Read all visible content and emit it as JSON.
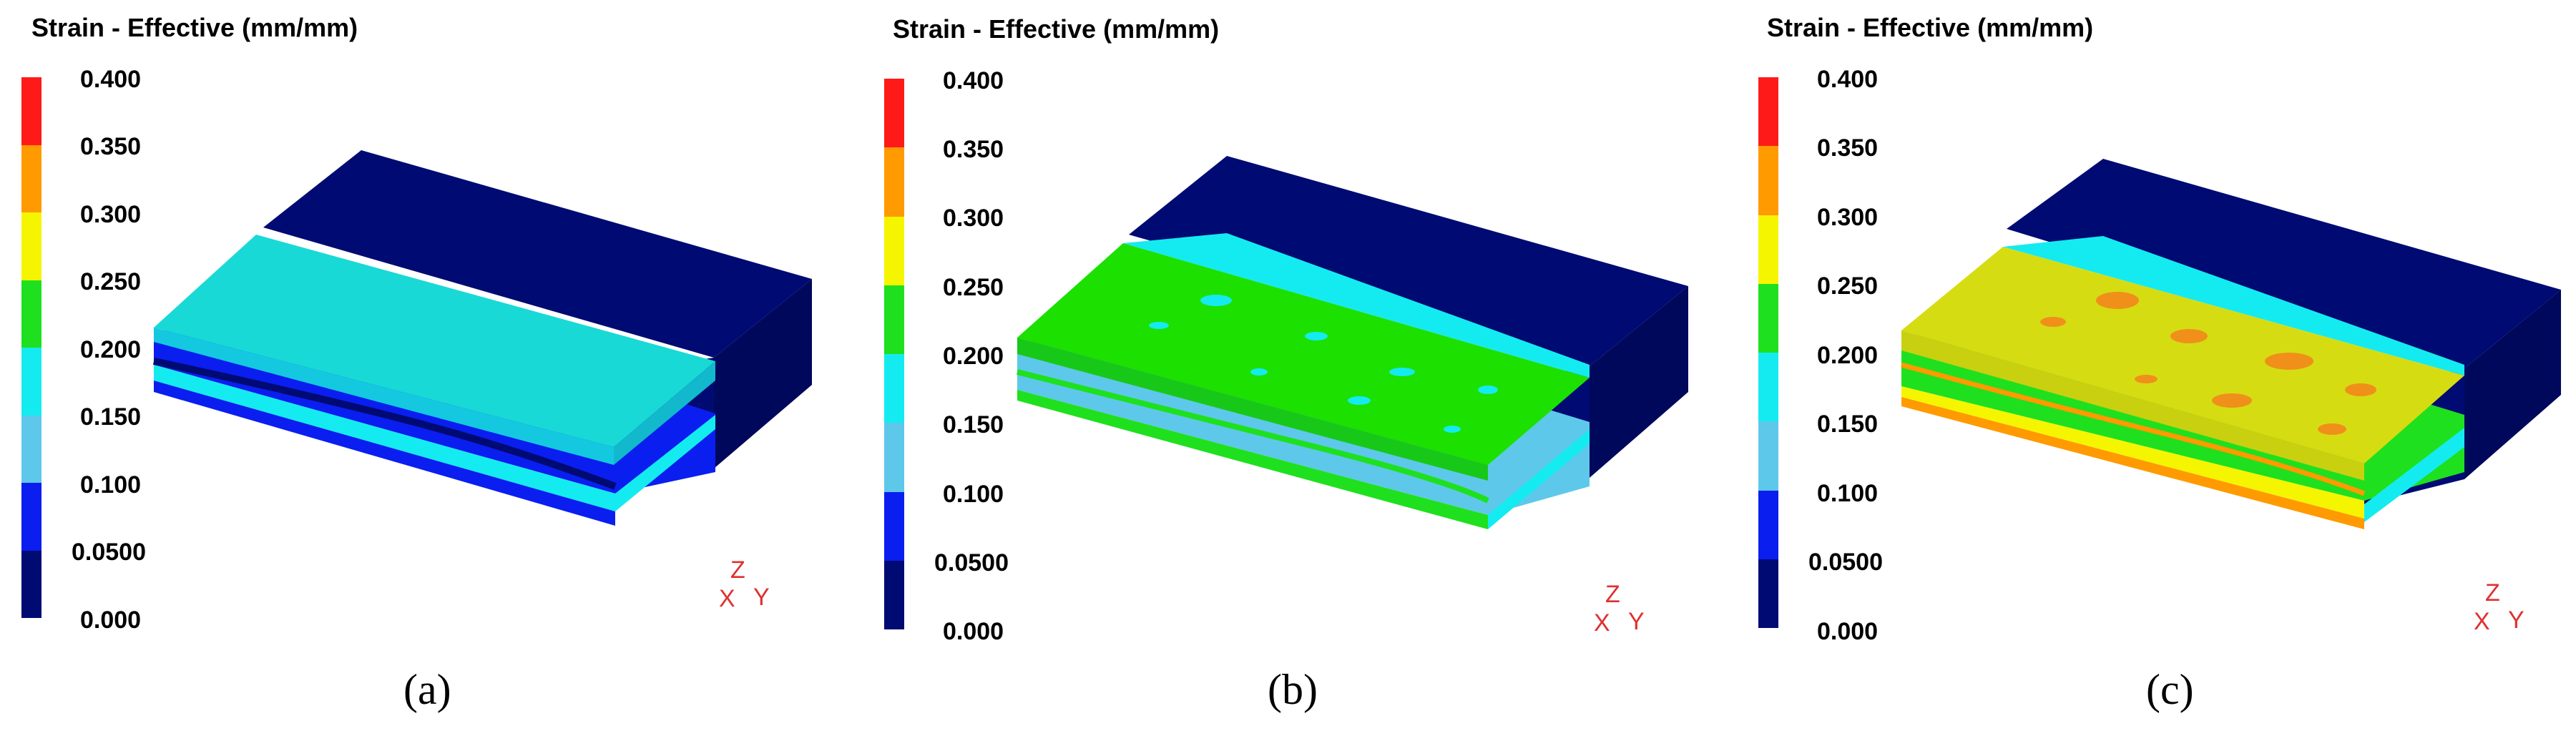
{
  "colors": {
    "band_0": "#000a73",
    "band_1": "#0a1ef0",
    "band_2": "#5ec8ea",
    "band_3": "#14ebf0",
    "band_4": "#1fe01f",
    "band_5": "#f5f500",
    "band_6": "#ff9a00",
    "band_7": "#ff1a1a",
    "base_block": "#000a73",
    "top_a": "#19d9d6",
    "top_b": "#1ce000",
    "top_c": "#d6dc12",
    "hotspot_b": "#14ebf0",
    "hotspot_c": "#f0901a",
    "axis_red": "#e03030"
  },
  "legend": {
    "title": "Strain - Effective (mm/mm)",
    "ticks": [
      "0.400",
      "0.350",
      "0.300",
      "0.250",
      "0.200",
      "0.150",
      "0.100",
      "0.0500",
      "0.000"
    ]
  },
  "panels": [
    {
      "caption": "(a)",
      "top_color": "#19d9d6"
    },
    {
      "caption": "(b)",
      "top_color": "#1ce000"
    },
    {
      "caption": "(c)",
      "top_color": "#d6dc12"
    }
  ],
  "axis_labels": {
    "z": "Z",
    "x": "X",
    "y": "Y"
  }
}
